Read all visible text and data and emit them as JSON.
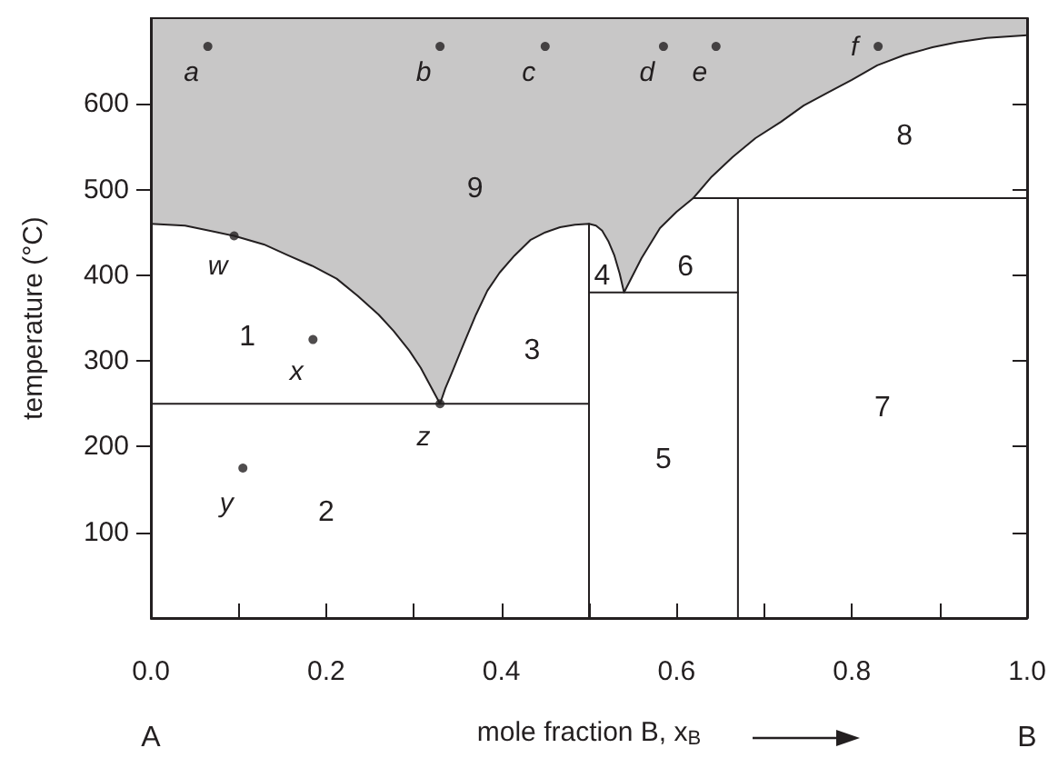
{
  "chart_data": {
    "type": "line",
    "xlabel": "mole fraction B, x$_{B}$",
    "ylabel": "temperature (°C)",
    "xlim": [
      0,
      1
    ],
    "ylim": [
      0,
      700
    ],
    "xticks": [
      {
        "value": 0,
        "label": "0.0"
      },
      {
        "value": 0.1,
        "label": null
      },
      {
        "value": 0.2,
        "label": "0.2"
      },
      {
        "value": 0.3,
        "label": null
      },
      {
        "value": 0.4,
        "label": "0.4"
      },
      {
        "value": 0.5,
        "label": null
      },
      {
        "value": 0.6,
        "label": "0.6"
      },
      {
        "value": 0.7,
        "label": null
      },
      {
        "value": 0.8,
        "label": "0.8"
      },
      {
        "value": 0.9,
        "label": null
      },
      {
        "value": 1,
        "label": "1.0"
      }
    ],
    "yticks": [
      100,
      200,
      300,
      400,
      500,
      600
    ],
    "series": [
      {
        "color": "#231f20",
        "x": [
          0,
          0.039,
          0.095,
          0.129,
          0.157,
          0.184,
          0.212,
          0.236,
          0.26,
          0.277,
          0.295,
          0.308,
          0.319,
          0.33,
          0.336,
          0.343,
          0.357,
          0.371,
          0.384,
          0.398,
          0.415,
          0.433,
          0.45,
          0.467,
          0.484,
          0.5,
          0.508,
          0.515,
          0.522,
          0.529,
          0.535,
          0.54,
          0.56,
          0.581,
          0.6,
          0.619,
          0.64,
          0.664,
          0.69,
          0.719,
          0.745,
          0.774,
          0.8,
          0.829,
          0.86,
          0.892,
          0.92,
          0.954,
          1
        ],
        "values": [
          460,
          458,
          446,
          436,
          423,
          411,
          396,
          376,
          354,
          335,
          312,
          292,
          271,
          250,
          268,
          285,
          320,
          354,
          382,
          403,
          423,
          441,
          450,
          456,
          459,
          460,
          458,
          452,
          440,
          423,
          402,
          380,
          420,
          455,
          474,
          490,
          515,
          538,
          560,
          579,
          598,
          614,
          628,
          645,
          657,
          666,
          672,
          677,
          680
        ],
        "lower": [
          460,
          458,
          446,
          436,
          423,
          411,
          396,
          376,
          354,
          335,
          312,
          292,
          271,
          250,
          268,
          285,
          320,
          354,
          382,
          403,
          423,
          441,
          450,
          456,
          459,
          460,
          458,
          452,
          440,
          423,
          402,
          380,
          420,
          455,
          474,
          490,
          515,
          538,
          560,
          579,
          598,
          614,
          628,
          645,
          657,
          666,
          672,
          677,
          680
        ],
        "upper": [
          700,
          700,
          700,
          700,
          700,
          700,
          700,
          700,
          700,
          700,
          700,
          700,
          700,
          700,
          700,
          700,
          700,
          700,
          700,
          700,
          700,
          700,
          700,
          700,
          700,
          700,
          700,
          700,
          700,
          700,
          700,
          700,
          700,
          700,
          700,
          700,
          700,
          700,
          700,
          700,
          700,
          700,
          700,
          700,
          700,
          700,
          700,
          700,
          700
        ]
      },
      {
        "color": "#231f20",
        "x": [
          0,
          0.5
        ],
        "values": [
          250,
          250
        ]
      },
      {
        "color": "#231f20",
        "x": [
          0.5,
          0.5
        ],
        "values": [
          0,
          460
        ]
      },
      {
        "color": "#231f20",
        "x": [
          0.5,
          0.67
        ],
        "values": [
          380,
          380
        ]
      },
      {
        "color": "#231f20",
        "x": [
          0.67,
          0.67
        ],
        "values": [
          0,
          490
        ]
      },
      {
        "color": "#231f20",
        "x": [
          0.619,
          1
        ],
        "values": [
          490,
          490
        ]
      },
      {
        "type": "scatter",
        "color": "#231f20",
        "marker": "circle",
        "x": [
          0.065,
          0.33,
          0.45,
          0.585,
          0.645,
          0.83,
          0.095,
          0.185,
          0.105,
          0.33
        ],
        "values": [
          667,
          667,
          667,
          667,
          667,
          667,
          446,
          325,
          175,
          250
        ]
      }
    ],
    "annotations": [
      {
        "text": "a",
        "x": 0.065,
        "y": 667
      },
      {
        "text": "b",
        "x": 0.33,
        "y": 667
      },
      {
        "text": "c",
        "x": 0.45,
        "y": 667
      },
      {
        "text": "d",
        "x": 0.585,
        "y": 667
      },
      {
        "text": "e",
        "x": 0.645,
        "y": 667
      },
      {
        "text": "f",
        "x": 0.83,
        "y": 667
      },
      {
        "text": "w",
        "x": 0.095,
        "y": 446
      },
      {
        "text": "x",
        "x": 0.185,
        "y": 325
      },
      {
        "text": "y",
        "x": 0.105,
        "y": 175
      },
      {
        "text": "z",
        "x": 0.33,
        "y": 250
      },
      "1",
      "2",
      "3",
      "4",
      "5",
      "6",
      "7",
      "8",
      "9",
      "A",
      "B"
    ]
  }
}
